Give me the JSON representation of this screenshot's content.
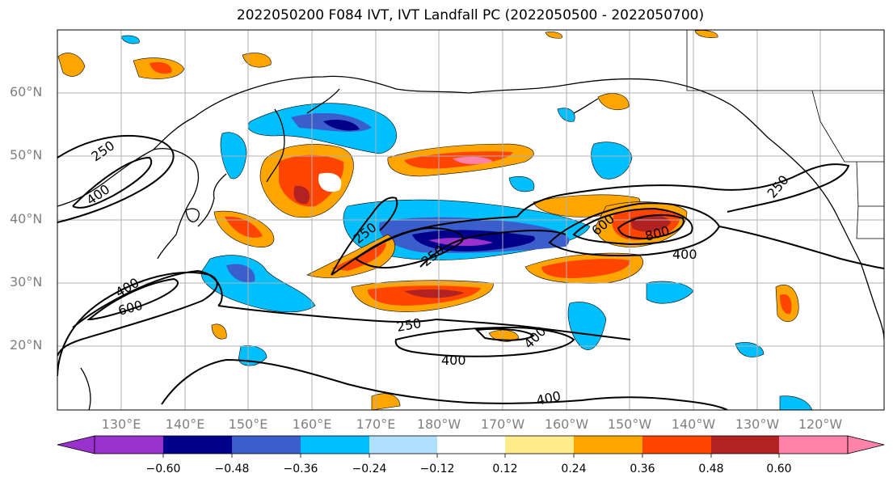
{
  "title": "2022050200 F084 IVT, IVT Landfall PC (2022050500 - 2022050700)",
  "lat_labels": [
    "60°N",
    "50°N",
    "40°N",
    "30°N",
    "20°N"
  ],
  "lon_labels": [
    "130°E",
    "140°E",
    "150°E",
    "160°E",
    "170°E",
    "180°W",
    "170°W",
    "160°W",
    "150°W",
    "140°W",
    "130°W",
    "120°W"
  ],
  "contour_labels": [
    "250",
    "400",
    "400",
    "600",
    "250",
    "250",
    "600",
    "800",
    "400",
    "250",
    "250",
    "400",
    "400",
    "400"
  ],
  "colorbar": {
    "ticks": [
      "−0.60",
      "−0.48",
      "−0.36",
      "−0.24",
      "−0.12",
      "0.12",
      "0.24",
      "0.36",
      "0.48",
      "0.60"
    ],
    "colors": [
      "#9932cc",
      "#00008b",
      "#3a5fcd",
      "#00bfff",
      "#b0e0ff",
      "#ffffff",
      "#ffec8b",
      "#ffa500",
      "#ff4500",
      "#b22222",
      "#ff82ab"
    ]
  }
}
